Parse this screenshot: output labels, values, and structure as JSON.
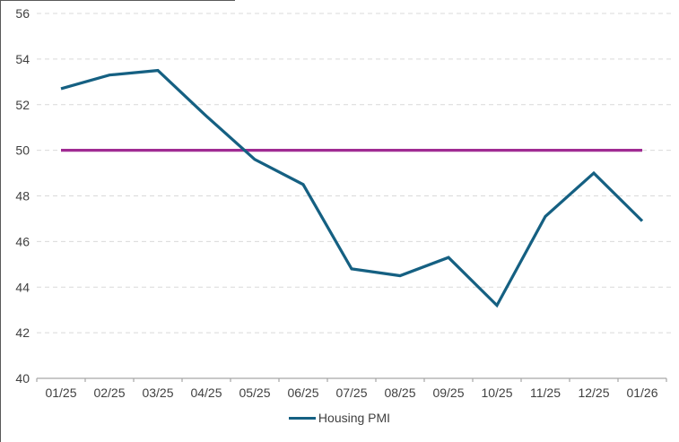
{
  "chart_data": {
    "type": "line",
    "title": "",
    "xlabel": "",
    "ylabel": "",
    "categories": [
      "01/25",
      "02/25",
      "03/25",
      "04/25",
      "05/25",
      "06/25",
      "07/25",
      "08/25",
      "09/25",
      "10/25",
      "11/25",
      "12/25",
      "01/26"
    ],
    "series": [
      {
        "name": "Housing PMI",
        "color": "#156082",
        "in_legend": true,
        "values": [
          52.7,
          53.3,
          53.5,
          51.5,
          49.6,
          48.5,
          44.8,
          44.5,
          45.3,
          43.2,
          47.1,
          49.0,
          46.9
        ]
      },
      {
        "name": "reference-line-50",
        "color": "#A02B93",
        "in_legend": false,
        "values": [
          50,
          50,
          50,
          50,
          50,
          50,
          50,
          50,
          50,
          50,
          50,
          50,
          50
        ]
      }
    ],
    "ylim": [
      40,
      56
    ],
    "ytick_step": 2,
    "ytick_labels": [
      "40",
      "42",
      "44",
      "46",
      "48",
      "50",
      "52",
      "54",
      "56"
    ],
    "grid": "horizontal-dashed",
    "legend_position": "bottom-center",
    "legend_entries": [
      "Housing PMI"
    ]
  },
  "legend": {
    "label": "Housing PMI"
  },
  "colors": {
    "series_line": "#156082",
    "reference_line": "#A02B93",
    "gridline": "#D9D9D9",
    "axis_line": "#A6A6A6",
    "label_text": "#404040"
  }
}
